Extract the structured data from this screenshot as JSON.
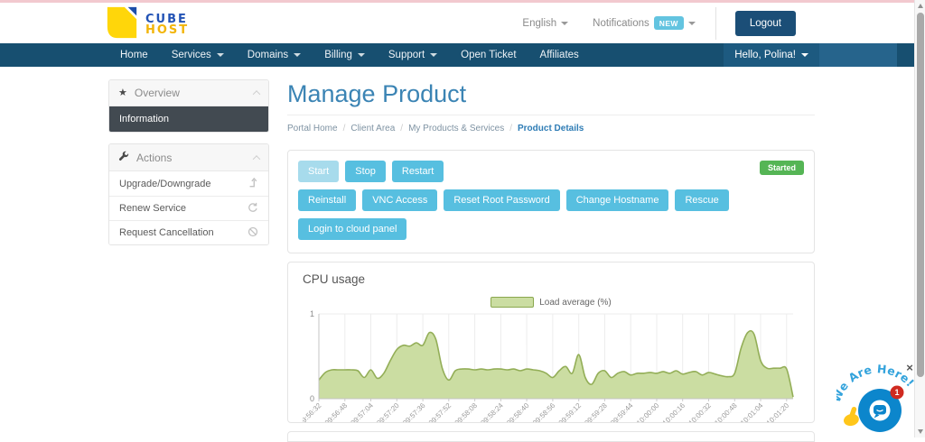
{
  "colors": {
    "navbar": "#174f70",
    "accent_button": "#57bfe0",
    "status_started": "#55b555",
    "title_blue": "#3b84b4",
    "brand_blue": "#2353b5",
    "brand_yellow": "#f2b50a"
  },
  "header": {
    "brand_line1": "CUBE",
    "brand_line2": "HOST",
    "language": "English",
    "notifications_label": "Notifications",
    "notifications_badge": "NEW",
    "logout_label": "Logout"
  },
  "navbar": {
    "items": [
      {
        "label": "Home",
        "caret": false
      },
      {
        "label": "Services",
        "caret": true
      },
      {
        "label": "Domains",
        "caret": true
      },
      {
        "label": "Billing",
        "caret": true
      },
      {
        "label": "Support",
        "caret": true
      },
      {
        "label": "Open Ticket",
        "caret": false
      },
      {
        "label": "Affiliates",
        "caret": false
      }
    ],
    "greeting": "Hello, Polina!"
  },
  "sidebar": {
    "overview_title": "Overview",
    "overview_items": [
      {
        "label": "Information",
        "active": true
      }
    ],
    "actions_title": "Actions",
    "action_items": [
      {
        "label": "Upgrade/Downgrade",
        "icon": "level-up-icon"
      },
      {
        "label": "Renew Service",
        "icon": "refresh-icon"
      },
      {
        "label": "Request Cancellation",
        "icon": "ban-icon"
      }
    ]
  },
  "main": {
    "page_title": "Manage Product",
    "breadcrumb": [
      "Portal Home",
      "Client Area",
      "My Products & Services",
      "Product Details"
    ],
    "status_badge": "Started",
    "power_buttons": [
      {
        "label": "Start",
        "disabled": true
      },
      {
        "label": "Stop",
        "disabled": false
      },
      {
        "label": "Restart",
        "disabled": false
      }
    ],
    "manage_buttons": [
      "Reinstall",
      "VNC Access",
      "Reset Root Password",
      "Change Hostname",
      "Rescue"
    ],
    "cloud_button": "Login to cloud panel"
  },
  "chart_data": {
    "type": "area",
    "title": "CPU usage",
    "legend": "Load average (%)",
    "legend_position": "top-center",
    "grid": true,
    "ylim": [
      0,
      1
    ],
    "yticks": [
      0,
      1
    ],
    "x_tick_labels": [
      "09:56:32",
      "09:56:48",
      "09:57:04",
      "09:57:20",
      "09:57:36",
      "09:57:52",
      "09:58:08",
      "09:58:24",
      "09:58:40",
      "09:58:56",
      "09:59:12",
      "09:59:28",
      "09:59:44",
      "10:00:00",
      "10:00:16",
      "10:00:32",
      "10:00:48",
      "10:01:04",
      "10:01:20"
    ],
    "tick_interval_seconds": 16,
    "point_interval_seconds": 4,
    "series": [
      {
        "name": "Load average (%)",
        "values": [
          0.22,
          0.31,
          0.34,
          0.34,
          0.34,
          0.34,
          0.33,
          0.25,
          0.34,
          0.24,
          0.3,
          0.45,
          0.58,
          0.63,
          0.62,
          0.66,
          0.63,
          0.78,
          0.7,
          0.36,
          0.22,
          0.33,
          0.35,
          0.35,
          0.34,
          0.35,
          0.34,
          0.35,
          0.35,
          0.34,
          0.35,
          0.33,
          0.35,
          0.34,
          0.33,
          0.3,
          0.25,
          0.33,
          0.38,
          0.3,
          0.52,
          0.25,
          0.17,
          0.3,
          0.33,
          0.25,
          0.3,
          0.32,
          0.28,
          0.3,
          0.3,
          0.31,
          0.3,
          0.32,
          0.3,
          0.33,
          0.29,
          0.31,
          0.32,
          0.28,
          0.31,
          0.29,
          0.27,
          0.26,
          0.3,
          0.6,
          0.78,
          0.76,
          0.45,
          0.36,
          0.36,
          0.36,
          0.35,
          0.02
        ]
      }
    ],
    "fill_color": "#cbdda2",
    "line_color": "#93ae57"
  },
  "chat_widget": {
    "message": "We Are Here!",
    "badge_count": "1",
    "close": "×"
  }
}
